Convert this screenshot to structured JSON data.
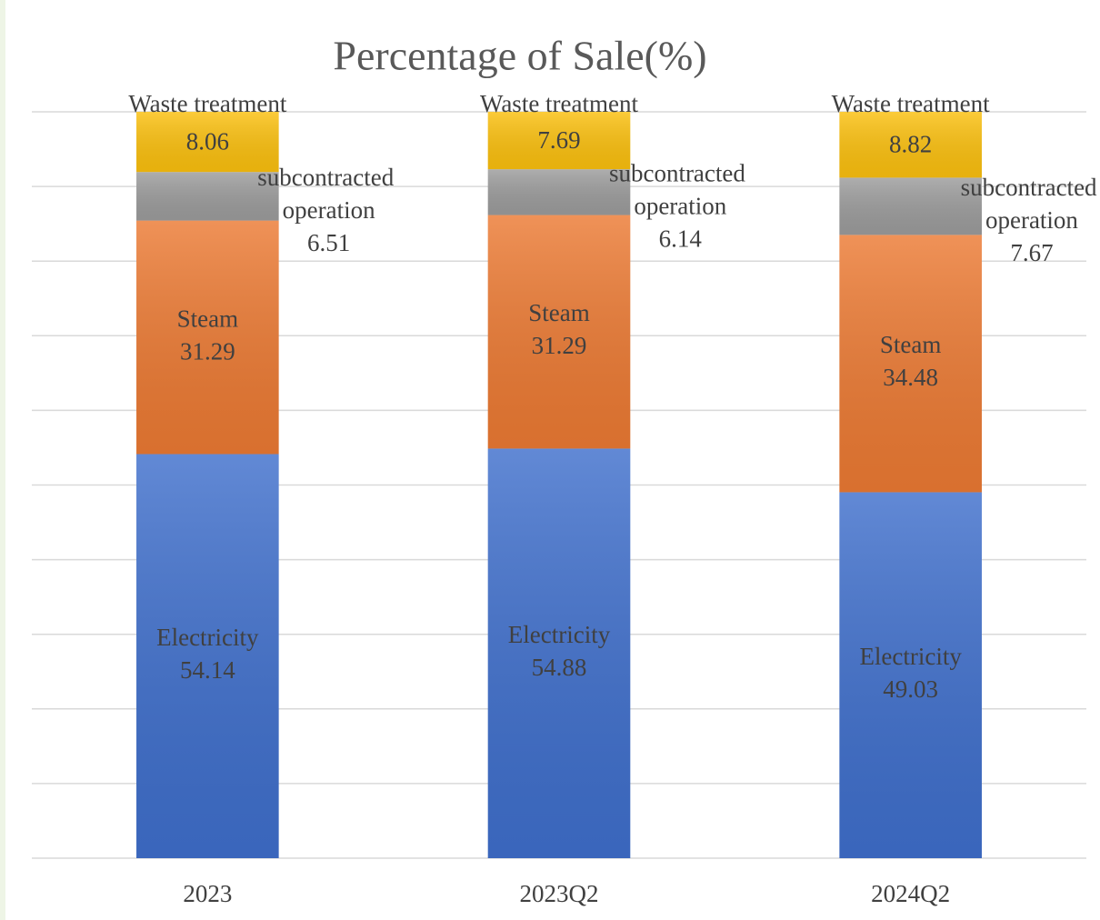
{
  "chart_data": {
    "type": "stacked_bar",
    "title": "Percentage of Sale(%)",
    "categories": [
      "2023",
      "2023Q2",
      "2024Q2"
    ],
    "series": [
      {
        "name": "Electricity",
        "color": "#3f6fcc",
        "values": [
          54.14,
          54.88,
          49.03
        ]
      },
      {
        "name": "Steam",
        "color": "#ec7a33",
        "values": [
          31.29,
          31.29,
          34.48
        ]
      },
      {
        "name": "subcontracted operation",
        "color": "#9c9c9c",
        "values": [
          6.51,
          6.14,
          7.67
        ]
      },
      {
        "name": "Waste treatment",
        "color": "#fbc00e",
        "values": [
          8.06,
          7.69,
          8.82
        ]
      }
    ],
    "ylim": [
      0,
      100
    ],
    "yticks": [
      0,
      10,
      20,
      30,
      40,
      50,
      60,
      70,
      80,
      90,
      100
    ],
    "grid": true
  }
}
